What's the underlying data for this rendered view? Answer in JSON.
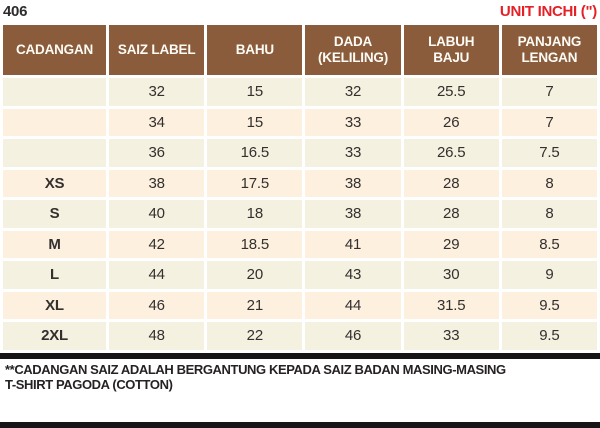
{
  "top": {
    "code": "406",
    "unit": "UNIT INCHI (\")"
  },
  "chart_data": {
    "type": "table",
    "title": "T-shirt Pagoda (Cotton) size chart, unit inches",
    "columns": [
      "CADANGAN",
      "SAIZ LABEL",
      "BAHU",
      "DADA (KELILING)",
      "LABUH BAJU",
      "PANJANG LENGAN"
    ],
    "rows": [
      [
        "",
        "32",
        "15",
        "32",
        "25.5",
        "7"
      ],
      [
        "",
        "34",
        "15",
        "33",
        "26",
        "7"
      ],
      [
        "",
        "36",
        "16.5",
        "33",
        "26.5",
        "7.5"
      ],
      [
        "XS",
        "38",
        "17.5",
        "38",
        "28",
        "8"
      ],
      [
        "S",
        "40",
        "18",
        "38",
        "28",
        "8"
      ],
      [
        "M",
        "42",
        "18.5",
        "41",
        "29",
        "8.5"
      ],
      [
        "L",
        "44",
        "20",
        "43",
        "30",
        "9"
      ],
      [
        "XL",
        "46",
        "21",
        "44",
        "31.5",
        "9.5"
      ],
      [
        "2XL",
        "48",
        "22",
        "46",
        "33",
        "9.5"
      ]
    ]
  },
  "footer": {
    "note": "**CADANGAN SAIZ ADALAH BERGANTUNG KEPADA SAIZ BADAN MASING-MASING",
    "product": "T-SHIRT PAGODA (COTTON)"
  },
  "colors": {
    "brown": "#8a5c3b",
    "cream": "#f5f1e0",
    "peach": "#fdf0df",
    "red": "#e42127",
    "red_number": "#e9393d",
    "bar": "#161414",
    "text_dark": "#262223"
  }
}
